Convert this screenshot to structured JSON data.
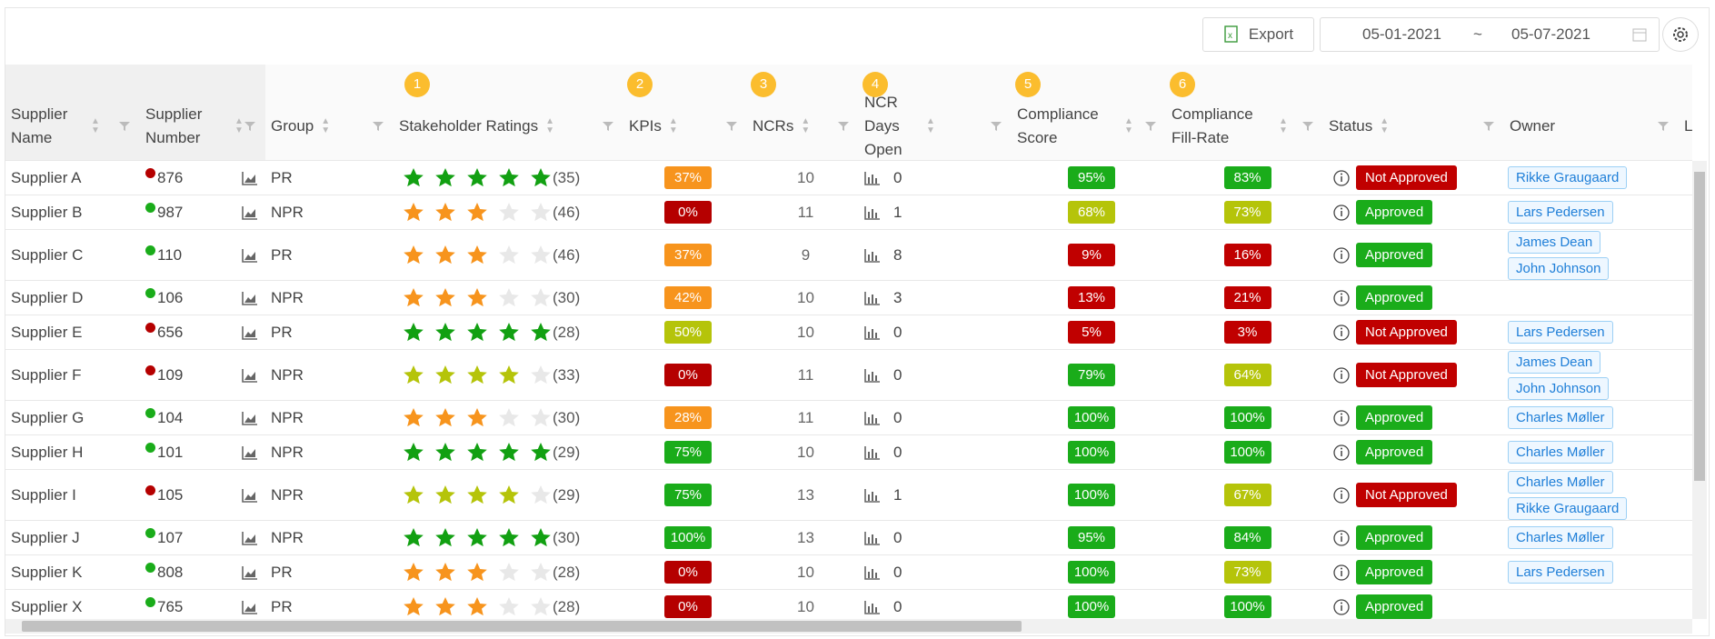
{
  "toolbar": {
    "export": "Export",
    "date_from": "05-01-2021",
    "date_sep": "~",
    "date_to": "05-07-2021"
  },
  "table": {
    "star_max": 5,
    "columns": [
      {
        "label": "Supplier Name"
      },
      {
        "label": "Supplier Number"
      },
      {
        "label": "Group"
      },
      {
        "label": "Stakeholder Ratings",
        "badge": "1"
      },
      {
        "label": "KPIs",
        "badge": "2"
      },
      {
        "label": "NCRs",
        "badge": "3"
      },
      {
        "label": "NCR Days Open",
        "badge": "4"
      },
      {
        "label": "Compliance Score",
        "badge": "5"
      },
      {
        "label": "Compliance Fill-Rate",
        "badge": "6"
      },
      {
        "label": "Status"
      },
      {
        "label": "Owner"
      },
      {
        "label": "L"
      }
    ],
    "rows": [
      {
        "name": "Supplier A",
        "indicator": "#b50000",
        "number": 876,
        "group": "PR",
        "stars": 5,
        "star_color": "#12a012",
        "rating_count": "(35)",
        "kpi": "37%",
        "kpi_color": "#f7941d",
        "ncrs": 10,
        "ncr_days": 0,
        "score": "95%",
        "score_color": "#1aac1a",
        "fill": "83%",
        "fill_color": "#1aac1a",
        "status": "Not Approved",
        "status_color": "#c00000",
        "owners": [
          "Rikke Graugaard"
        ]
      },
      {
        "name": "Supplier B",
        "indicator": "#1aac1a",
        "number": 987,
        "group": "NPR",
        "stars": 3,
        "star_color": "#f7941d",
        "rating_count": "(46)",
        "kpi": "0%",
        "kpi_color": "#b50000",
        "ncrs": 11,
        "ncr_days": 1,
        "score": "68%",
        "score_color": "#b5c40a",
        "fill": "73%",
        "fill_color": "#b5c40a",
        "status": "Approved",
        "status_color": "#1aac1a",
        "owners": [
          "Lars Pedersen"
        ]
      },
      {
        "name": "Supplier C",
        "indicator": "#1aac1a",
        "number": 110,
        "group": "PR",
        "stars": 3,
        "star_color": "#f7941d",
        "rating_count": "(46)",
        "kpi": "37%",
        "kpi_color": "#f7941d",
        "ncrs": 9,
        "ncr_days": 8,
        "score": "9%",
        "score_color": "#c00000",
        "fill": "16%",
        "fill_color": "#c00000",
        "status": "Approved",
        "status_color": "#1aac1a",
        "owners": [
          "James Dean",
          "John Johnson"
        ]
      },
      {
        "name": "Supplier D",
        "indicator": "#1aac1a",
        "number": 106,
        "group": "NPR",
        "stars": 3,
        "star_color": "#f7941d",
        "rating_count": "(30)",
        "kpi": "42%",
        "kpi_color": "#f7941d",
        "ncrs": 10,
        "ncr_days": 3,
        "score": "13%",
        "score_color": "#c00000",
        "fill": "21%",
        "fill_color": "#c00000",
        "status": "Approved",
        "status_color": "#1aac1a",
        "owners": []
      },
      {
        "name": "Supplier E",
        "indicator": "#b50000",
        "number": 656,
        "group": "PR",
        "stars": 5,
        "star_color": "#12a012",
        "rating_count": "(28)",
        "kpi": "50%",
        "kpi_color": "#b5c40a",
        "ncrs": 10,
        "ncr_days": 0,
        "score": "5%",
        "score_color": "#c00000",
        "fill": "3%",
        "fill_color": "#c00000",
        "status": "Not Approved",
        "status_color": "#c00000",
        "owners": [
          "Lars Pedersen"
        ]
      },
      {
        "name": "Supplier F",
        "indicator": "#b50000",
        "number": 109,
        "group": "NPR",
        "stars": 4,
        "star_color": "#b5c40a",
        "rating_count": "(33)",
        "kpi": "0%",
        "kpi_color": "#b50000",
        "ncrs": 11,
        "ncr_days": 0,
        "score": "79%",
        "score_color": "#1aac1a",
        "fill": "64%",
        "fill_color": "#b5c40a",
        "status": "Not Approved",
        "status_color": "#c00000",
        "owners": [
          "James Dean",
          "John Johnson"
        ]
      },
      {
        "name": "Supplier G",
        "indicator": "#1aac1a",
        "number": 104,
        "group": "NPR",
        "stars": 3,
        "star_color": "#f7941d",
        "rating_count": "(30)",
        "kpi": "28%",
        "kpi_color": "#f7941d",
        "ncrs": 11,
        "ncr_days": 0,
        "score": "100%",
        "score_color": "#1aac1a",
        "fill": "100%",
        "fill_color": "#1aac1a",
        "status": "Approved",
        "status_color": "#1aac1a",
        "owners": [
          "Charles Møller"
        ]
      },
      {
        "name": "Supplier H",
        "indicator": "#1aac1a",
        "number": 101,
        "group": "NPR",
        "stars": 5,
        "star_color": "#12a012",
        "rating_count": "(29)",
        "kpi": "75%",
        "kpi_color": "#1aac1a",
        "ncrs": 10,
        "ncr_days": 0,
        "score": "100%",
        "score_color": "#1aac1a",
        "fill": "100%",
        "fill_color": "#1aac1a",
        "status": "Approved",
        "status_color": "#1aac1a",
        "owners": [
          "Charles Møller"
        ]
      },
      {
        "name": "Supplier I",
        "indicator": "#b50000",
        "number": 105,
        "group": "NPR",
        "stars": 4,
        "star_color": "#b5c40a",
        "rating_count": "(29)",
        "kpi": "75%",
        "kpi_color": "#1aac1a",
        "ncrs": 13,
        "ncr_days": 1,
        "score": "100%",
        "score_color": "#1aac1a",
        "fill": "67%",
        "fill_color": "#b5c40a",
        "status": "Not Approved",
        "status_color": "#c00000",
        "owners": [
          "Charles Møller",
          "Rikke Graugaard"
        ]
      },
      {
        "name": "Supplier J",
        "indicator": "#1aac1a",
        "number": 107,
        "group": "NPR",
        "stars": 5,
        "star_color": "#12a012",
        "rating_count": "(30)",
        "kpi": "100%",
        "kpi_color": "#1aac1a",
        "ncrs": 13,
        "ncr_days": 0,
        "score": "95%",
        "score_color": "#1aac1a",
        "fill": "84%",
        "fill_color": "#1aac1a",
        "status": "Approved",
        "status_color": "#1aac1a",
        "owners": [
          "Charles Møller"
        ]
      },
      {
        "name": "Supplier K",
        "indicator": "#1aac1a",
        "number": 808,
        "group": "PR",
        "stars": 3,
        "star_color": "#f7941d",
        "rating_count": "(28)",
        "kpi": "0%",
        "kpi_color": "#b50000",
        "ncrs": 10,
        "ncr_days": 0,
        "score": "100%",
        "score_color": "#1aac1a",
        "fill": "73%",
        "fill_color": "#b5c40a",
        "status": "Approved",
        "status_color": "#1aac1a",
        "owners": [
          "Lars Pedersen"
        ]
      },
      {
        "name": "Supplier X",
        "indicator": "#1aac1a",
        "number": 765,
        "group": "PR",
        "stars": 3,
        "star_color": "#f7941d",
        "rating_count": "(28)",
        "kpi": "0%",
        "kpi_color": "#b50000",
        "ncrs": 10,
        "ncr_days": 0,
        "score": "100%",
        "score_color": "#1aac1a",
        "fill": "100%",
        "fill_color": "#1aac1a",
        "status": "Approved",
        "status_color": "#1aac1a",
        "owners": []
      }
    ]
  }
}
